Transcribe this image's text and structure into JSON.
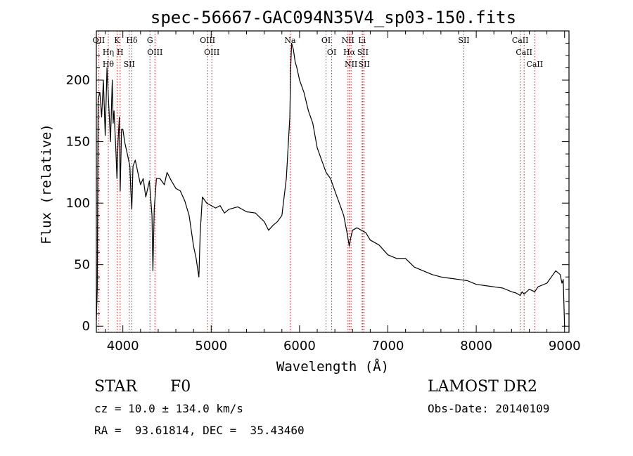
{
  "chart_data": {
    "type": "line",
    "title": "spec-56667-GAC094N35V4_sp03-150.fits",
    "xlabel": "Wavelength (Å)",
    "ylabel": "Flux (relative)",
    "xlim": [
      3700,
      9050
    ],
    "ylim": [
      -5,
      240
    ],
    "xticks": [
      4000,
      5000,
      6000,
      7000,
      8000,
      9000
    ],
    "yticks": [
      0,
      50,
      100,
      150,
      200
    ],
    "grid": false,
    "line_color": "#000000",
    "marker_color": "#b22222",
    "series": [
      {
        "x": [
          3700,
          3710,
          3720,
          3740,
          3760,
          3780,
          3800,
          3820,
          3840,
          3860,
          3880,
          3890,
          3900,
          3920,
          3933,
          3945,
          3960,
          3970,
          3985,
          4000,
          4020,
          4050,
          4080,
          4090,
          4101,
          4115,
          4140,
          4170,
          4200,
          4230,
          4260,
          4300,
          4330,
          4340,
          4355,
          4380,
          4420,
          4470,
          4500,
          4550,
          4600,
          4650,
          4700,
          4750,
          4800,
          4830,
          4850,
          4861,
          4875,
          4900,
          4950,
          5000,
          5050,
          5100,
          5150,
          5200,
          5300,
          5400,
          5500,
          5600,
          5650,
          5700,
          5750,
          5800,
          5850,
          5870,
          5890,
          5900,
          5910,
          5930,
          5950,
          5970,
          6000,
          6050,
          6100,
          6150,
          6200,
          6250,
          6300,
          6350,
          6400,
          6450,
          6500,
          6540,
          6563,
          6580,
          6600,
          6650,
          6700,
          6750,
          6800,
          6850,
          6900,
          7000,
          7100,
          7200,
          7300,
          7400,
          7500,
          7600,
          7700,
          7800,
          7900,
          8000,
          8100,
          8200,
          8300,
          8400,
          8450,
          8498,
          8520,
          8542,
          8600,
          8662,
          8700,
          8800,
          8850,
          8900,
          8950,
          8970,
          8985,
          9000,
          9010
        ],
        "y": [
          5,
          30,
          185,
          190,
          170,
          200,
          155,
          210,
          180,
          150,
          200,
          165,
          175,
          145,
          120,
          150,
          170,
          110,
          160,
          160,
          150,
          140,
          130,
          110,
          95,
          130,
          135,
          125,
          115,
          120,
          105,
          118,
          90,
          45,
          95,
          120,
          120,
          115,
          125,
          118,
          112,
          110,
          102,
          90,
          65,
          55,
          45,
          40,
          75,
          105,
          100,
          98,
          96,
          98,
          92,
          95,
          97,
          93,
          92,
          85,
          78,
          82,
          85,
          90,
          120,
          145,
          170,
          210,
          230,
          225,
          215,
          210,
          200,
          190,
          175,
          165,
          145,
          135,
          125,
          120,
          110,
          100,
          90,
          75,
          65,
          72,
          78,
          80,
          78,
          76,
          70,
          68,
          66,
          58,
          55,
          55,
          48,
          45,
          42,
          40,
          39,
          38,
          37,
          34,
          33,
          32,
          31,
          28,
          27,
          25,
          28,
          26,
          30,
          28,
          32,
          35,
          40,
          45,
          42,
          35,
          38,
          0,
          0
        ]
      }
    ],
    "line_markers": [
      {
        "wavelength": 3727,
        "labels": [
          "OII"
        ]
      },
      {
        "wavelength": 3835,
        "labels": [
          "Hη",
          "Hθ"
        ]
      },
      {
        "wavelength": 3934,
        "labels": [
          "K"
        ]
      },
      {
        "wavelength": 3969,
        "labels": [
          "H"
        ]
      },
      {
        "wavelength": 4072,
        "labels": [
          "SII"
        ]
      },
      {
        "wavelength": 4102,
        "labels": [
          "Hδ"
        ]
      },
      {
        "wavelength": 4307,
        "labels": [
          "G"
        ]
      },
      {
        "wavelength": 4363,
        "labels": [
          "OIII"
        ]
      },
      {
        "wavelength": 4959,
        "labels": [
          "OIII"
        ]
      },
      {
        "wavelength": 5007,
        "labels": [
          "OIII"
        ]
      },
      {
        "wavelength": 5893,
        "labels": [
          "Na"
        ]
      },
      {
        "wavelength": 6300,
        "labels": [
          "OI"
        ]
      },
      {
        "wavelength": 6364,
        "labels": [
          "OI"
        ]
      },
      {
        "wavelength": 6548,
        "labels": [
          "NII"
        ]
      },
      {
        "wavelength": 6563,
        "labels": [
          "Hα"
        ]
      },
      {
        "wavelength": 6583,
        "labels": [
          "NII"
        ]
      },
      {
        "wavelength": 6708,
        "labels": [
          "Li"
        ]
      },
      {
        "wavelength": 6716,
        "labels": [
          "SII"
        ]
      },
      {
        "wavelength": 6731,
        "labels": [
          "SII"
        ]
      },
      {
        "wavelength": 7860,
        "labels": [
          "SII"
        ]
      },
      {
        "wavelength": 8498,
        "labels": [
          "CaII"
        ]
      },
      {
        "wavelength": 8542,
        "labels": [
          "CaII"
        ]
      },
      {
        "wavelength": 8662,
        "labels": [
          "CaII"
        ]
      }
    ]
  },
  "info": {
    "object_class": "STAR",
    "subclass": "F0",
    "survey": "LAMOST DR2",
    "redshift": "cz = 10.0 ± 134.0 km/s",
    "obs_date": "Obs-Date: 20140109",
    "coords": "RA =  93.61814, DEC =  35.43460"
  }
}
